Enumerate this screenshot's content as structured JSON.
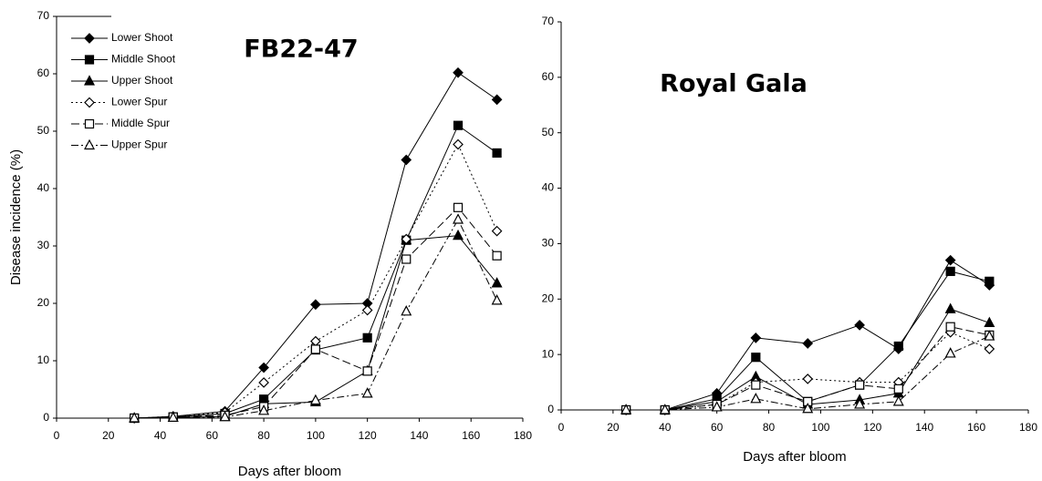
{
  "chart_data": [
    {
      "type": "line",
      "title": "FB22-47",
      "xlabel": "Days after bloom",
      "ylabel": "Disease incidence (%)",
      "x": [
        30,
        45,
        65,
        80,
        100,
        120,
        135,
        155,
        170
      ],
      "xlim": [
        0,
        180
      ],
      "xticks": [
        0,
        20,
        40,
        60,
        80,
        100,
        120,
        140,
        160,
        180
      ],
      "ylim": [
        0,
        70
      ],
      "yticks": [
        0,
        10,
        20,
        30,
        40,
        50,
        60,
        70
      ],
      "legend": "upper left",
      "series": [
        {
          "name": "Lower  Shoot",
          "color": "#000000",
          "marker": "diamond",
          "filled": true,
          "dash": "solid",
          "values": [
            0,
            0.3,
            1.2,
            8.8,
            19.8,
            20,
            45,
            60.2,
            55.5
          ]
        },
        {
          "name": "Middle  Shoot",
          "color": "#000000",
          "marker": "square",
          "filled": true,
          "dash": "solid",
          "values": [
            0,
            0.2,
            0.8,
            3.3,
            11.9,
            14,
            31,
            51,
            46.2
          ]
        },
        {
          "name": "Upper  Shoot",
          "color": "#000000",
          "marker": "triangle",
          "filled": true,
          "dash": "solid",
          "values": [
            0,
            0.1,
            0.3,
            2.5,
            2.8,
            8.2,
            31,
            31.8,
            23.5
          ]
        },
        {
          "name": "Lower  Spur",
          "color": "#000000",
          "marker": "diamond",
          "filled": false,
          "dash": "dotted",
          "values": [
            0,
            0.3,
            1,
            6.2,
            13.4,
            18.8,
            31.2,
            47.7,
            32.6
          ]
        },
        {
          "name": "Middle  Spur",
          "color": "#000000",
          "marker": "square",
          "filled": false,
          "dash": "dashed",
          "values": [
            0,
            0.2,
            0.5,
            2,
            12,
            8.2,
            27.7,
            36.7,
            28.3
          ]
        },
        {
          "name": "Upper Spur",
          "color": "#000000",
          "marker": "triangle",
          "filled": false,
          "dash": "dashdot",
          "values": [
            0,
            0.1,
            0.2,
            1.3,
            3.1,
            4.3,
            18.6,
            34.6,
            20.5
          ]
        }
      ]
    },
    {
      "type": "line",
      "title": "Royal Gala",
      "xlabel": "Days after bloom",
      "x": [
        25,
        40,
        60,
        75,
        95,
        115,
        130,
        150,
        165
      ],
      "xlim": [
        0,
        180
      ],
      "xticks": [
        0,
        20,
        40,
        60,
        80,
        100,
        120,
        140,
        160,
        180
      ],
      "ylim": [
        0,
        70
      ],
      "yticks": [
        0,
        10,
        20,
        30,
        40,
        50,
        60,
        70
      ],
      "series": [
        {
          "color": "#000000",
          "marker": "diamond",
          "filled": true,
          "dash": "solid",
          "values": [
            0,
            0,
            3,
            13,
            12,
            15.3,
            11,
            27,
            22.5
          ]
        },
        {
          "color": "#000000",
          "marker": "square",
          "filled": true,
          "dash": "solid",
          "values": [
            0,
            0,
            2,
            9.5,
            1.5,
            4.5,
            11.5,
            25,
            23.2
          ]
        },
        {
          "color": "#000000",
          "marker": "triangle",
          "filled": true,
          "dash": "solid",
          "values": [
            0,
            0,
            1.5,
            6,
            1,
            1.8,
            3,
            18.2,
            15.7
          ]
        },
        {
          "color": "#000000",
          "marker": "diamond",
          "filled": false,
          "dash": "dotted",
          "values": [
            0,
            0,
            1,
            5,
            5.6,
            5,
            5,
            14,
            11
          ]
        },
        {
          "color": "#000000",
          "marker": "square",
          "filled": false,
          "dash": "dashed",
          "values": [
            0,
            0,
            1,
            4.5,
            1.5,
            4.5,
            3.8,
            15,
            13.5
          ]
        },
        {
          "color": "#000000",
          "marker": "triangle",
          "filled": false,
          "dash": "dashdot",
          "values": [
            0,
            0,
            0.5,
            2,
            0.2,
            1,
            1.5,
            10.2,
            13.3
          ]
        }
      ]
    }
  ]
}
